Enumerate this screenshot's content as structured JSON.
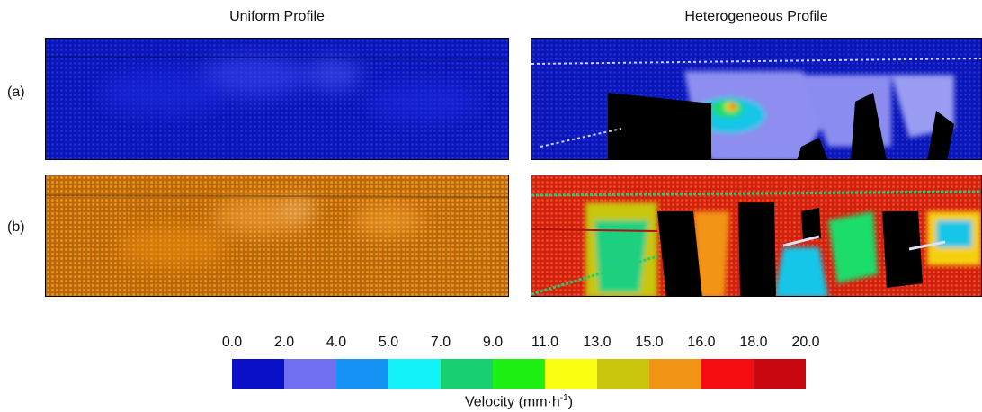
{
  "titles": {
    "left": "Uniform Profile",
    "right": "Heterogeneous Profile"
  },
  "row_labels": {
    "a": "(a)",
    "b": "(b)"
  },
  "colorbar": {
    "ticks": [
      "0.0",
      "2.0",
      "4.0",
      "5.0",
      "7.0",
      "9.0",
      "11.0",
      "13.0",
      "15.0",
      "16.0",
      "18.0",
      "20.0"
    ],
    "colors": [
      "#0a10c8",
      "#6f6ff0",
      "#1493f5",
      "#12f2f7",
      "#18d070",
      "#1ef014",
      "#f8ff10",
      "#c9c60d",
      "#f29414",
      "#f50c10",
      "#c8080e"
    ],
    "label_text": "Velocity (mm·h",
    "label_sup": "-1",
    "label_close": ")"
  }
}
